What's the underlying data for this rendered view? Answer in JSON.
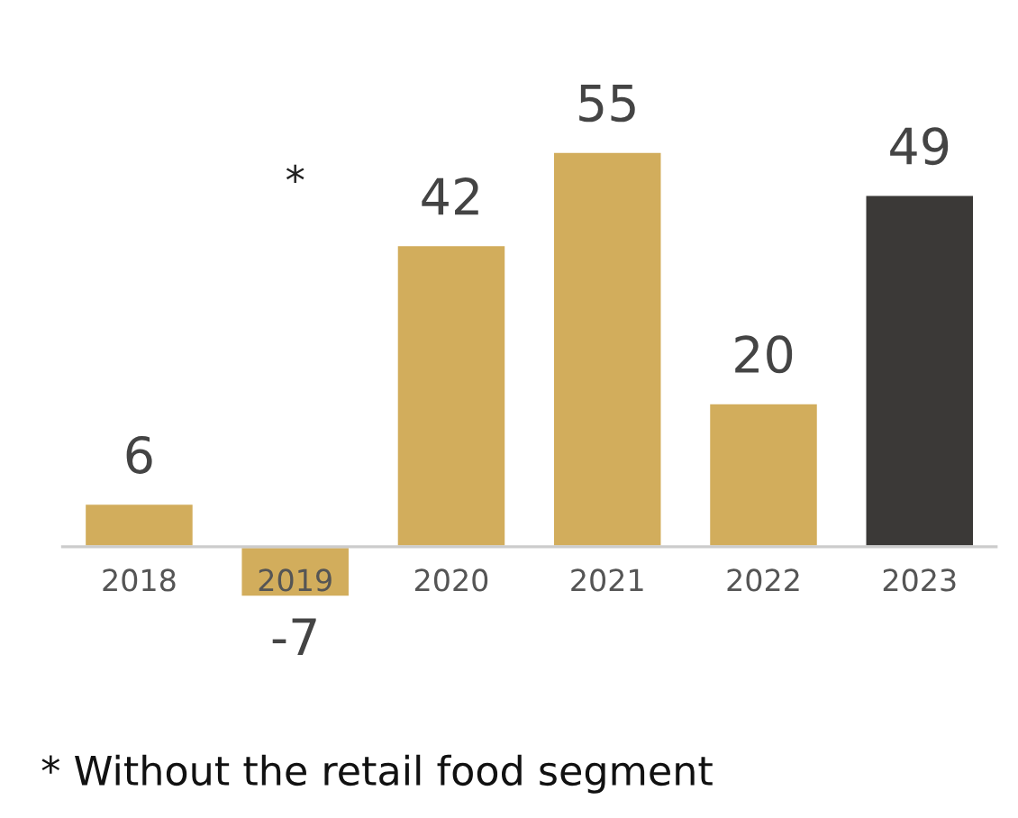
{
  "chart_data": {
    "type": "bar",
    "categories": [
      "2018",
      "2019",
      "2020",
      "2021",
      "2022",
      "2023"
    ],
    "values": [
      6,
      -7,
      42,
      55,
      20,
      49
    ],
    "colors": [
      "#d2ad5c",
      "#d2ad5c",
      "#d2ad5c",
      "#d2ad5c",
      "#d2ad5c",
      "#3b3937"
    ],
    "data_labels": true,
    "annotations": [
      "*",
      "* Without the retail food segment"
    ]
  }
}
